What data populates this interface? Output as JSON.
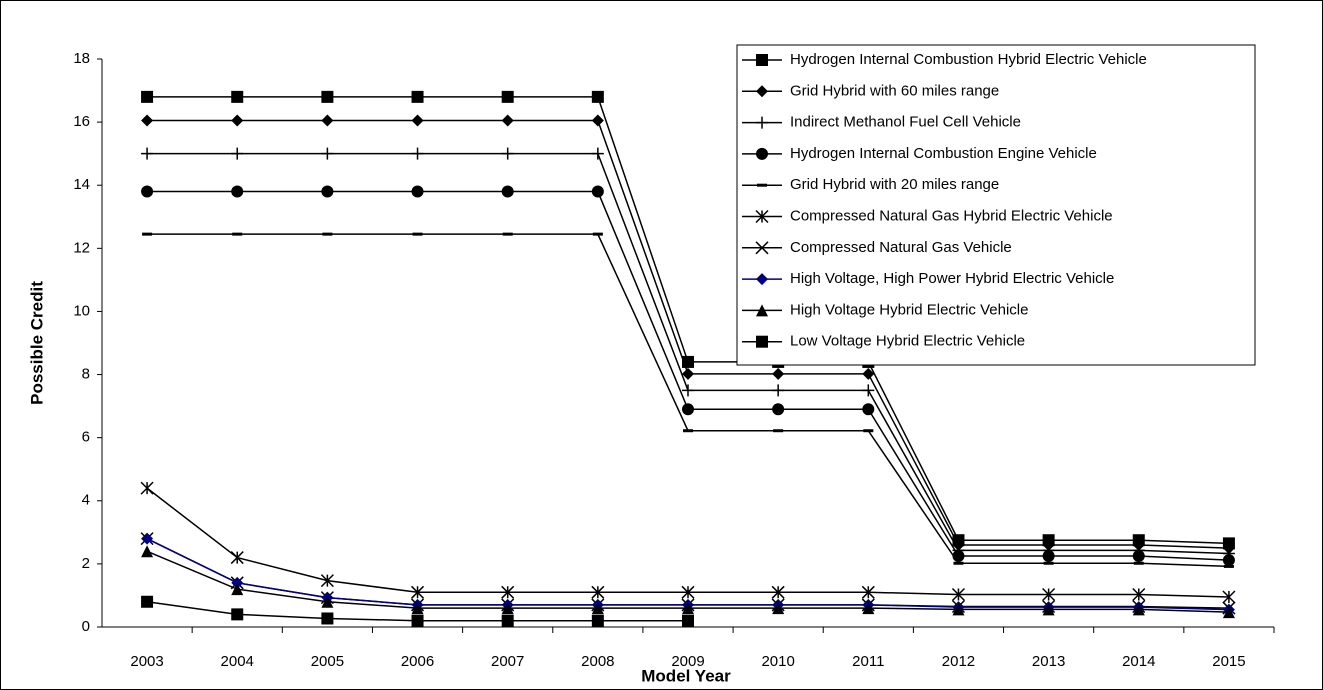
{
  "chart_data": {
    "type": "line",
    "x_label": "Model Year",
    "y_label": "Possible Credit",
    "categories": [
      "2003",
      "2004",
      "2005",
      "2006",
      "2007",
      "2008",
      "2009",
      "2010",
      "2011",
      "2012",
      "2013",
      "2014",
      "2015"
    ],
    "ylim": [
      0,
      18
    ],
    "yticks": [
      0,
      2,
      4,
      6,
      8,
      10,
      12,
      14,
      16,
      18
    ],
    "grid": false,
    "legend": "top-right",
    "series": [
      {
        "name": "Hydrogen Internal Combustion Hybrid Electric Vehicle",
        "color": "#000000",
        "marker": "square",
        "values": [
          16.8,
          16.8,
          16.8,
          16.8,
          16.8,
          16.8,
          8.4,
          8.4,
          8.4,
          2.75,
          2.75,
          2.75,
          2.65
        ]
      },
      {
        "name": "Grid Hybrid with 60 miles range",
        "color": "#000000",
        "marker": "diamond",
        "values": [
          16.05,
          16.05,
          16.05,
          16.05,
          16.05,
          16.05,
          8.02,
          8.02,
          8.02,
          2.6,
          2.6,
          2.6,
          2.5
        ]
      },
      {
        "name": "Indirect Methanol Fuel Cell Vehicle",
        "color": "#000000",
        "marker": "plus",
        "values": [
          15,
          15,
          15,
          15,
          15,
          15,
          7.5,
          7.5,
          7.5,
          2.43,
          2.43,
          2.43,
          2.33
        ]
      },
      {
        "name": "Hydrogen Internal Combustion Engine Vehicle",
        "color": "#000000",
        "marker": "circle",
        "values": [
          13.8,
          13.8,
          13.8,
          13.8,
          13.8,
          13.8,
          6.9,
          6.9,
          6.9,
          2.25,
          2.25,
          2.25,
          2.12
        ]
      },
      {
        "name": "Grid Hybrid with 20 miles range",
        "color": "#000000",
        "marker": "dash",
        "values": [
          12.45,
          12.45,
          12.45,
          12.45,
          12.45,
          12.45,
          6.22,
          6.22,
          6.22,
          2.02,
          2.02,
          2.02,
          1.92
        ]
      },
      {
        "name": "Compressed Natural Gas Hybrid Electric Vehicle",
        "color": "#000000",
        "marker": "asterisk",
        "values": [
          4.4,
          2.2,
          1.47,
          1.1,
          1.1,
          1.1,
          1.1,
          1.1,
          1.1,
          1.03,
          1.03,
          1.03,
          0.95
        ]
      },
      {
        "name": "Compressed Natural Gas Vehicle",
        "color": "#000000",
        "marker": "x",
        "values": [
          2.8,
          1.4,
          0.93,
          0.7,
          0.7,
          0.7,
          0.7,
          0.7,
          0.7,
          0.65,
          0.65,
          0.65,
          0.6
        ]
      },
      {
        "name": "High Voltage, High Power Hybrid Electric Vehicle",
        "color": "#000080",
        "marker": "diamond",
        "values": [
          2.8,
          1.4,
          0.93,
          0.7,
          0.7,
          0.7,
          0.7,
          0.7,
          0.7,
          0.63,
          0.63,
          0.63,
          0.55
        ]
      },
      {
        "name": "High Voltage Hybrid Electric Vehicle",
        "color": "#000000",
        "marker": "triangle",
        "values": [
          2.4,
          1.2,
          0.8,
          0.6,
          0.6,
          0.6,
          0.6,
          0.6,
          0.6,
          0.56,
          0.56,
          0.56,
          0.47
        ]
      },
      {
        "name": "Low Voltage Hybrid Electric Vehicle",
        "color": "#000000",
        "marker": "square",
        "values": [
          0.8,
          0.4,
          0.27,
          0.2,
          0.2,
          0.2,
          0.2,
          null,
          null,
          null,
          null,
          null,
          null
        ]
      }
    ]
  }
}
